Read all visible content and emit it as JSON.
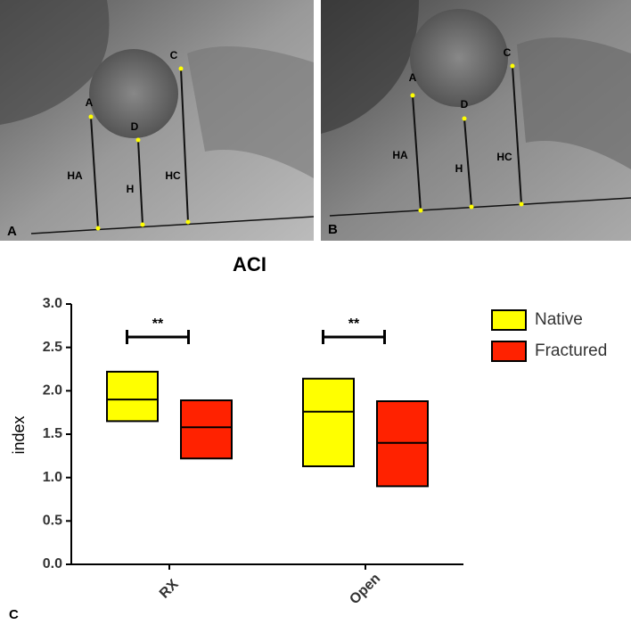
{
  "figure": {
    "panels": [
      {
        "label": "A",
        "points": [
          "A",
          "D",
          "C",
          "HA",
          "H",
          "HC"
        ]
      },
      {
        "label": "B",
        "points": [
          "A",
          "D",
          "C",
          "HA",
          "H",
          "HC"
        ]
      }
    ],
    "chart_label": "C"
  },
  "chart_data": {
    "type": "box",
    "title": "ACI",
    "y_label": "index",
    "categories": [
      "RX",
      "Open"
    ],
    "series": [
      {
        "name": "Native",
        "color": "#ffff00",
        "low": [
          1.65,
          1.13
        ],
        "median": [
          1.9,
          1.76
        ],
        "high": [
          2.22,
          2.14
        ]
      },
      {
        "name": "Fractured",
        "color": "#ff2200",
        "low": [
          1.22,
          0.9
        ],
        "median": [
          1.58,
          1.4
        ],
        "high": [
          1.89,
          1.88
        ]
      }
    ],
    "annotations": [
      "**",
      "**"
    ],
    "ylim": [
      0,
      3
    ],
    "yticks": [
      {
        "value": 0,
        "label": "0.0"
      },
      0.5,
      {
        "value": 1,
        "label": "1.0"
      },
      1.5,
      {
        "value": 2,
        "label": "2.0"
      },
      2.5,
      {
        "value": 3,
        "label": "3.0"
      }
    ],
    "legend": "top-right"
  }
}
